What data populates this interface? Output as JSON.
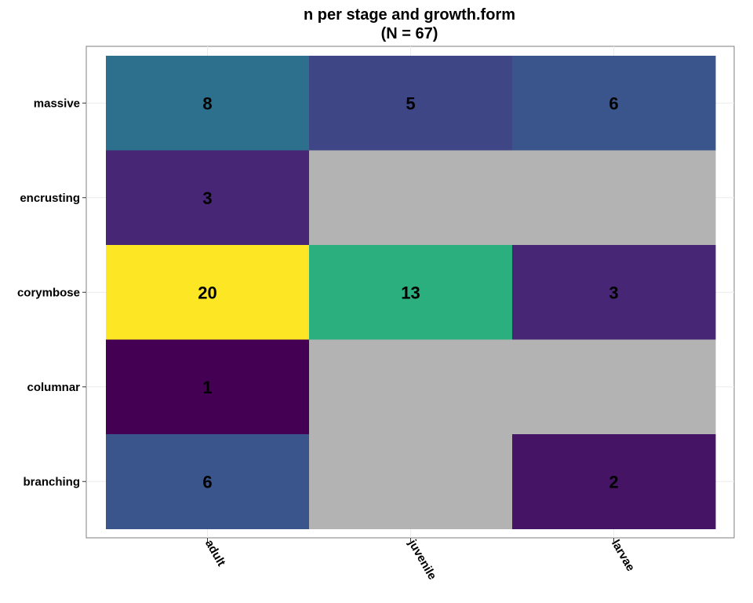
{
  "chart_data": {
    "type": "heatmap",
    "title": "n per stage and growth.form",
    "subtitle": "(N = 67)",
    "xlabel": "",
    "ylabel": "",
    "x_categories": [
      "adult",
      "juvenile",
      "larvae"
    ],
    "y_categories": [
      "massive",
      "encrusting",
      "corymbose",
      "columnar",
      "branching"
    ],
    "values": [
      [
        8,
        5,
        6
      ],
      [
        3,
        null,
        null
      ],
      [
        20,
        13,
        3
      ],
      [
        1,
        null,
        null
      ],
      [
        6,
        null,
        2
      ]
    ],
    "color_scale": "viridis",
    "value_range": [
      1,
      20
    ],
    "missing_color": "#b3b3b3",
    "grid": true,
    "legend": "none"
  }
}
